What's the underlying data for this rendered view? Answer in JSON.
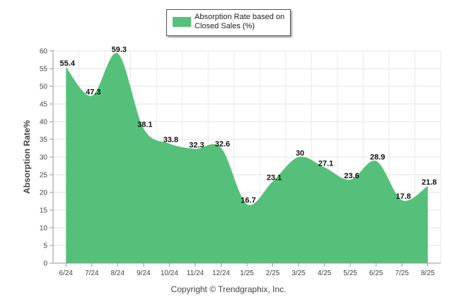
{
  "chart_data": {
    "type": "area",
    "categories": [
      "6/24",
      "7/24",
      "8/24",
      "9/24",
      "10/24",
      "11/24",
      "12/24",
      "1/25",
      "2/25",
      "3/25",
      "4/25",
      "5/25",
      "6/25",
      "7/25",
      "8/25"
    ],
    "series": [
      {
        "name": "Absorption Rate based on Closed Sales (%)",
        "values": [
          55.4,
          47.3,
          59.3,
          38.1,
          33.8,
          32.3,
          32.6,
          16.7,
          23.1,
          30,
          27.1,
          23.6,
          28.9,
          17.8,
          21.8
        ]
      }
    ],
    "ylabel": "Absorption Rate%",
    "ylim": [
      0,
      60
    ],
    "yticks": [
      0,
      5,
      10,
      15,
      20,
      25,
      30,
      35,
      40,
      45,
      50,
      55,
      60
    ],
    "grid": true,
    "legend": "top-center",
    "color": "#55c07a"
  },
  "footer": {
    "copyright": "Copyright © Trendgraphix, Inc."
  }
}
